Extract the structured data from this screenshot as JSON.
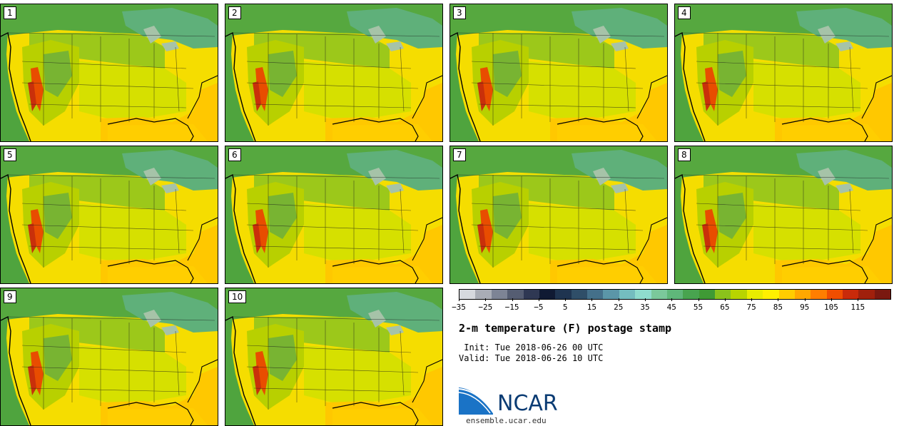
{
  "title": "2-m temperature (F) postage stamp",
  "init": " Init: Tue 2018-06-26 00 UTC",
  "valid": "Valid: Tue 2018-06-26 10 UTC",
  "logo": {
    "name": "NCAR",
    "url": "ensemble.ucar.edu"
  },
  "panels": [
    {
      "label": "1"
    },
    {
      "label": "2"
    },
    {
      "label": "3"
    },
    {
      "label": "4"
    },
    {
      "label": "5"
    },
    {
      "label": "6"
    },
    {
      "label": "7"
    },
    {
      "label": "8"
    },
    {
      "label": "9"
    },
    {
      "label": "10"
    }
  ],
  "colorbar": {
    "ticks": [
      "-35",
      "-25",
      "-15",
      "-5",
      "5",
      "15",
      "25",
      "35",
      "45",
      "55",
      "65",
      "75",
      "85",
      "95",
      "105",
      "115"
    ],
    "colors": [
      "#d6d9de",
      "#a9adb6",
      "#7d8495",
      "#555d72",
      "#2f3853",
      "#101a33",
      "#1f3450",
      "#2f4e68",
      "#44708a",
      "#5b96a8",
      "#74bdbf",
      "#8fdccd",
      "#7bc89b",
      "#5fb77a",
      "#48a44f",
      "#3f9a35",
      "#8bc21b",
      "#b8d400",
      "#e8ec00",
      "#fff000",
      "#ffcd00",
      "#ffa800",
      "#ff7e00",
      "#f04e00",
      "#c92a0a",
      "#a0200c",
      "#7a1810"
    ]
  },
  "colors": {
    "ocean_pacific": "#4fa43e",
    "ocean_gulf": "#ffc800",
    "land_warm": "#c8dc00"
  }
}
